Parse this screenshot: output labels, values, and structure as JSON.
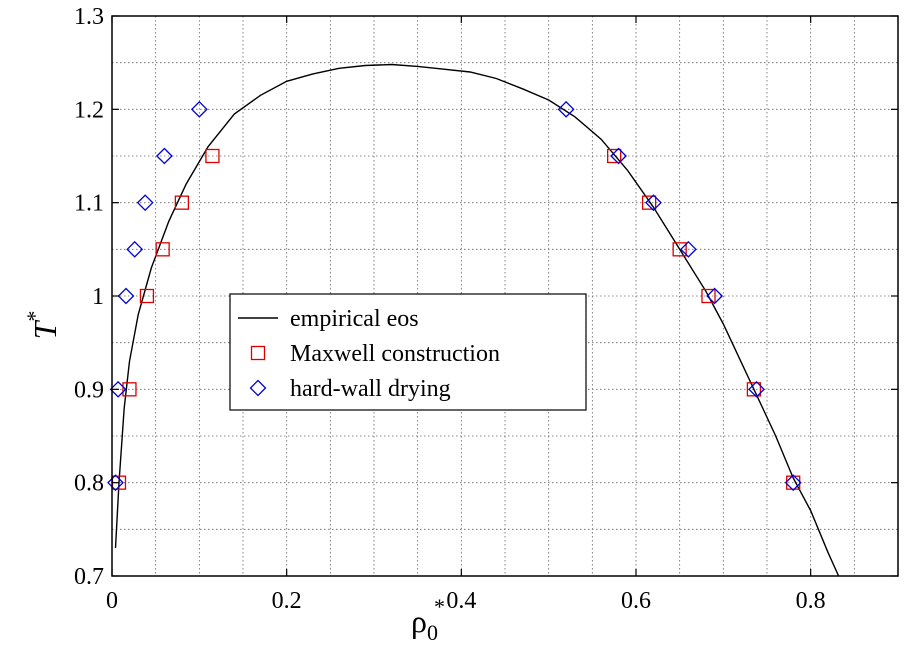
{
  "chart_data": {
    "type": "scatter",
    "xlabel": {
      "main": "ρ",
      "sub": "0",
      "sup": "*"
    },
    "ylabel": {
      "main": "T",
      "sup": "*"
    },
    "xlim": [
      0,
      0.9
    ],
    "ylim": [
      0.7,
      1.3
    ],
    "xticks": [
      0,
      0.2,
      0.4,
      0.6,
      0.8
    ],
    "xtick_labels": [
      "0",
      "0.2",
      "0.4",
      "0.6",
      "0.8"
    ],
    "yticks": [
      0.7,
      0.8,
      0.9,
      1.0,
      1.1,
      1.2,
      1.3
    ],
    "ytick_labels": [
      "0.7",
      "0.8",
      "0.9",
      "1",
      "1.1",
      "1.2",
      "1.3"
    ],
    "grid": true,
    "legend_position": "center-left",
    "series": [
      {
        "name": "empirical eos",
        "kind": "line",
        "color": "#000000",
        "points": [
          [
            0.004,
            0.73
          ],
          [
            0.008,
            0.8
          ],
          [
            0.014,
            0.88
          ],
          [
            0.02,
            0.93
          ],
          [
            0.03,
            0.98
          ],
          [
            0.045,
            1.03
          ],
          [
            0.065,
            1.08
          ],
          [
            0.085,
            1.12
          ],
          [
            0.11,
            1.16
          ],
          [
            0.14,
            1.195
          ],
          [
            0.17,
            1.215
          ],
          [
            0.2,
            1.23
          ],
          [
            0.23,
            1.238
          ],
          [
            0.26,
            1.244
          ],
          [
            0.29,
            1.247
          ],
          [
            0.32,
            1.248
          ],
          [
            0.35,
            1.246
          ],
          [
            0.38,
            1.243
          ],
          [
            0.41,
            1.24
          ],
          [
            0.44,
            1.233
          ],
          [
            0.47,
            1.222
          ],
          [
            0.5,
            1.21
          ],
          [
            0.53,
            1.192
          ],
          [
            0.56,
            1.168
          ],
          [
            0.59,
            1.135
          ],
          [
            0.62,
            1.095
          ],
          [
            0.65,
            1.05
          ],
          [
            0.68,
            1.005
          ],
          [
            0.7,
            0.97
          ],
          [
            0.72,
            0.93
          ],
          [
            0.74,
            0.89
          ],
          [
            0.76,
            0.85
          ],
          [
            0.78,
            0.805
          ],
          [
            0.8,
            0.77
          ],
          [
            0.82,
            0.725
          ],
          [
            0.832,
            0.7
          ]
        ]
      },
      {
        "name": "Maxwell construction",
        "kind": "marker",
        "marker": "square",
        "color": "#dd0000",
        "points": [
          [
            0.008,
            0.8
          ],
          [
            0.02,
            0.9
          ],
          [
            0.04,
            1.0
          ],
          [
            0.058,
            1.05
          ],
          [
            0.08,
            1.1
          ],
          [
            0.115,
            1.15
          ],
          [
            0.575,
            1.15
          ],
          [
            0.615,
            1.1
          ],
          [
            0.65,
            1.05
          ],
          [
            0.683,
            1.0
          ],
          [
            0.735,
            0.9
          ],
          [
            0.78,
            0.8
          ]
        ]
      },
      {
        "name": "hard-wall drying",
        "kind": "marker",
        "marker": "diamond",
        "color": "#0000dd",
        "points": [
          [
            0.004,
            0.8
          ],
          [
            0.007,
            0.9
          ],
          [
            0.016,
            1.0
          ],
          [
            0.026,
            1.05
          ],
          [
            0.038,
            1.1
          ],
          [
            0.06,
            1.15
          ],
          [
            0.1,
            1.2
          ],
          [
            0.52,
            1.2
          ],
          [
            0.58,
            1.15
          ],
          [
            0.62,
            1.1
          ],
          [
            0.66,
            1.05
          ],
          [
            0.69,
            1.0
          ],
          [
            0.738,
            0.9
          ],
          [
            0.78,
            0.8
          ]
        ]
      }
    ]
  }
}
